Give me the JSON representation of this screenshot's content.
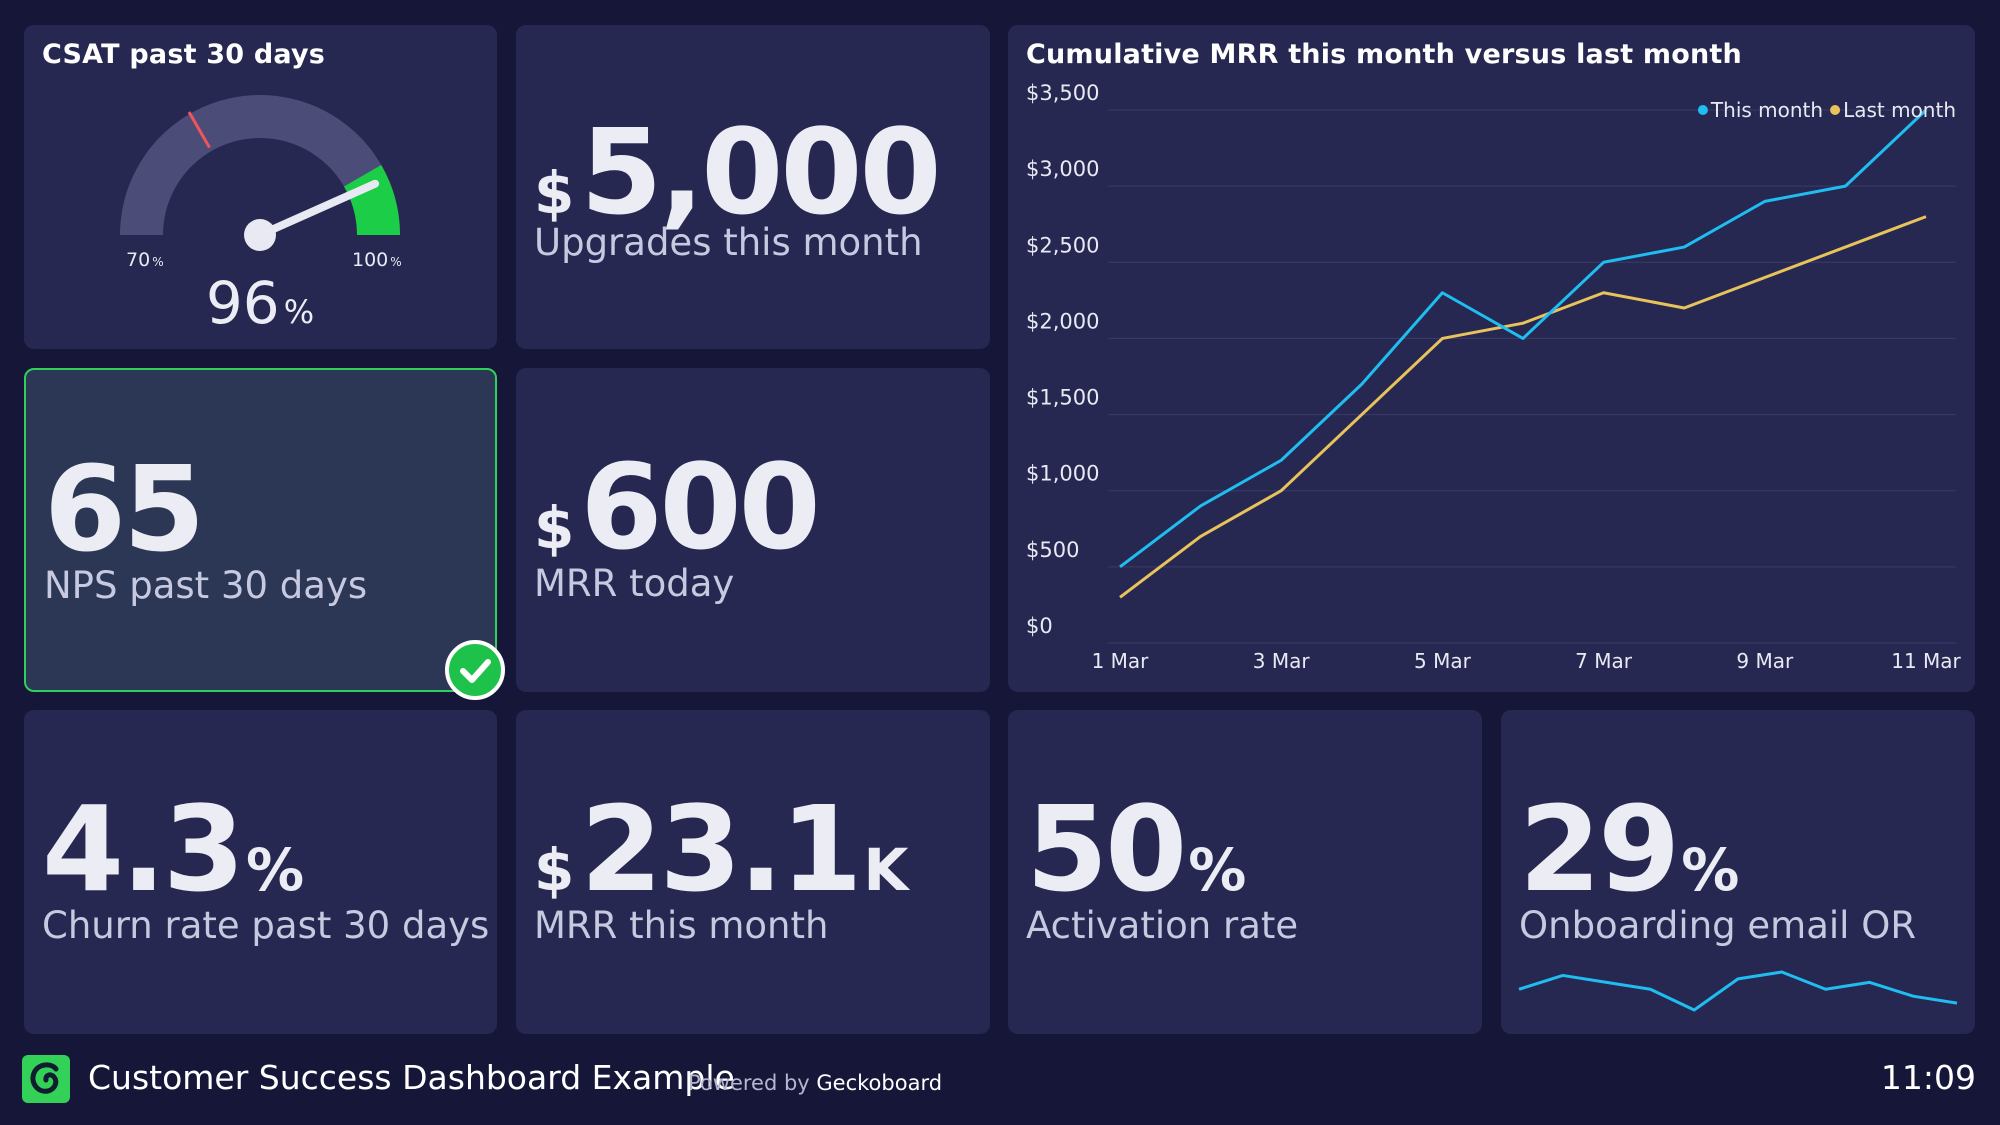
{
  "csat": {
    "title": "CSAT past 30 days",
    "value": "96",
    "unit": "%",
    "min_label": "70",
    "min_unit": "%",
    "max_label": "100",
    "max_unit": "%",
    "gauge_min": 70,
    "gauge_max": 100,
    "gauge_value": 96,
    "red_threshold": 80,
    "green_threshold": 95,
    "colors": {
      "track": "#4b4d78",
      "green": "#1ccd48",
      "red": "#f2545b",
      "needle": "#e8e9f3"
    }
  },
  "upgrades": {
    "prefix": "$",
    "value": "5,000",
    "label": "Upgrades this month"
  },
  "nps": {
    "value": "65",
    "label": "NPS past 30 days",
    "status": "check-icon",
    "accent": "#2fd15a"
  },
  "mrr_today": {
    "prefix": "$",
    "value": "600",
    "label": "MRR today"
  },
  "churn": {
    "value": "4.3",
    "unit": "%",
    "label": "Churn rate past 30 days"
  },
  "mrr_month": {
    "prefix": "$",
    "value": "23.1",
    "unit": "K",
    "label": "MRR this month"
  },
  "activation": {
    "value": "50",
    "unit": "%",
    "label": "Activation rate"
  },
  "onboarding": {
    "value": "29",
    "unit": "%",
    "label": "Onboarding email OR",
    "sparkline": [
      29,
      33,
      31,
      29,
      23,
      32,
      34,
      29,
      31,
      27,
      25
    ],
    "color": "#1fbdf0"
  },
  "chart_data": {
    "type": "line",
    "title": "Cumulative MRR this month versus last month",
    "x": [
      "1 Mar",
      "2 Mar",
      "3 Mar",
      "4 Mar",
      "5 Mar",
      "6 Mar",
      "7 Mar",
      "8 Mar",
      "9 Mar",
      "10 Mar",
      "11 Mar"
    ],
    "x_tick_labels": [
      "1 Mar",
      "3 Mar",
      "5 Mar",
      "7 Mar",
      "9 Mar",
      "11 Mar"
    ],
    "y_tick_labels": [
      "$0",
      "$500",
      "$1,000",
      "$1,500",
      "$2,000",
      "$2,500",
      "$3,000",
      "$3,500"
    ],
    "ylim": [
      0,
      3500
    ],
    "grid": true,
    "legend": "top-right",
    "series": [
      {
        "name": "This month",
        "color": "#1fbdf0",
        "values": [
          500,
          900,
          1200,
          1700,
          2300,
          2000,
          2500,
          2600,
          2900,
          3000,
          3500
        ]
      },
      {
        "name": "Last month",
        "color": "#e8c25a",
        "values": [
          300,
          700,
          1000,
          1500,
          2000,
          2100,
          2300,
          2200,
          2400,
          2600,
          2800
        ]
      }
    ]
  },
  "footer": {
    "title": "Customer Success Dashboard Example",
    "powered_prefix": "Powered by",
    "powered_brand": "Geckoboard",
    "time": "11:09"
  }
}
